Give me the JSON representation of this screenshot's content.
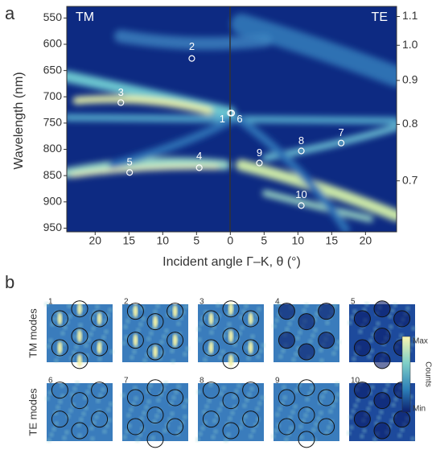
{
  "panel_a": {
    "label": "a",
    "corner_left": "TM",
    "corner_right": "TE",
    "y_label": "Wavelength (nm)",
    "x_label": "Incident angle Γ–K, θ (°)",
    "xlim": [
      -24.2,
      24.6
    ],
    "ylim": [
      528,
      957
    ],
    "yticks": [
      550,
      600,
      650,
      700,
      750,
      800,
      850,
      900,
      950
    ],
    "xticks": [
      {
        "value": -20,
        "label": "20"
      },
      {
        "value": -15,
        "label": "15"
      },
      {
        "value": -10,
        "label": "10"
      },
      {
        "value": -5,
        "label": "5"
      },
      0,
      5,
      10,
      15,
      20
    ],
    "y2scale": "reciprocal",
    "y2lim": [
      1.14,
      0.629
    ],
    "y2ticks": [
      1.1,
      {
        "value": 1,
        "label": "1.0"
      },
      0.9,
      0.8,
      0.7
    ],
    "points": [
      {
        "label": "1",
        "x": 0,
        "y": 731
      },
      {
        "label": "2",
        "x": -5.7,
        "y": 627
      },
      {
        "label": "3",
        "x": -16.2,
        "y": 711
      },
      {
        "label": "4",
        "x": -4.6,
        "y": 835
      },
      {
        "label": "5",
        "x": -14.9,
        "y": 844
      },
      {
        "label": "6",
        "x": 0.2,
        "y": 731
      },
      {
        "label": "7",
        "x": 16.4,
        "y": 788
      },
      {
        "label": "8",
        "x": 10.5,
        "y": 803
      },
      {
        "label": "9",
        "x": 4.3,
        "y": 826
      },
      {
        "label": "10",
        "x": 10.5,
        "y": 907
      }
    ]
  },
  "panel_b": {
    "label": "b",
    "row_labels": [
      "TM modes",
      "TE modes"
    ],
    "modes": [
      "1",
      "2",
      "3",
      "4",
      "5",
      "6",
      "7",
      "8",
      "9",
      "10"
    ],
    "colorbar": {
      "max": "Max",
      "min": "Min",
      "title": "Counts"
    }
  }
}
